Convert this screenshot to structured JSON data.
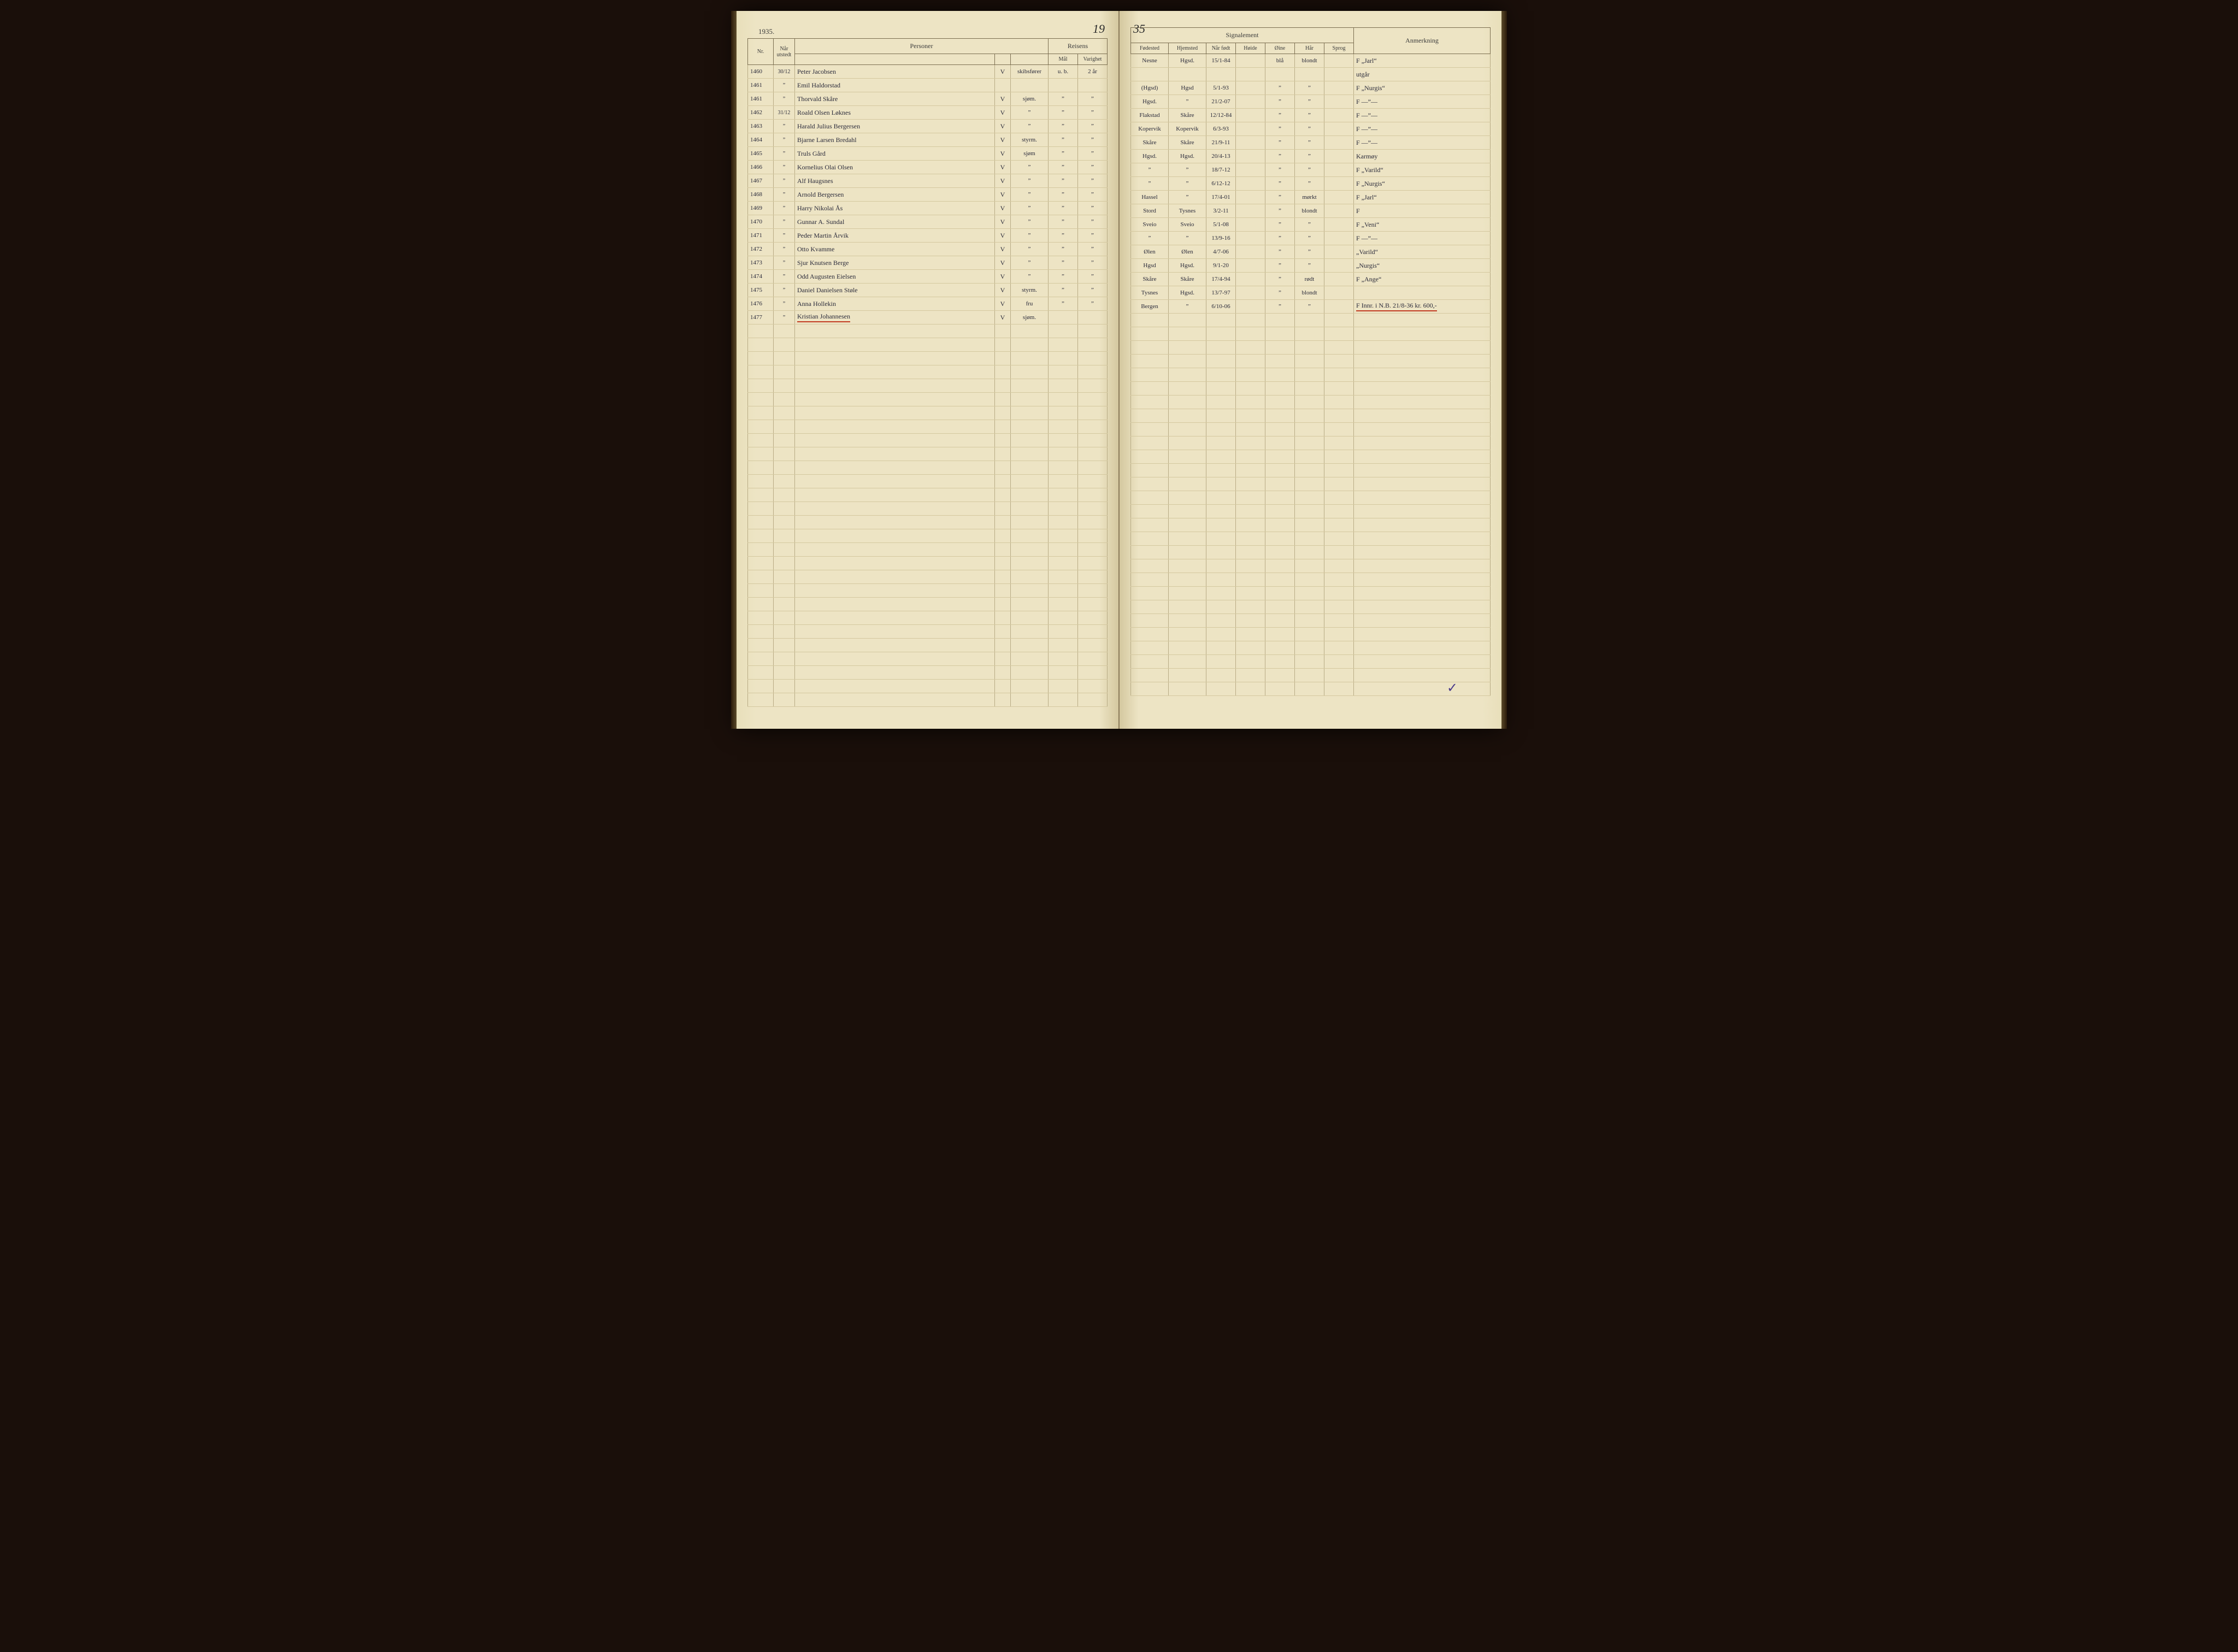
{
  "year_left": "1935.",
  "page_num_left": "19",
  "page_num_right": "35",
  "headers_left": {
    "nr": "Nr.",
    "naar": "Når utstedt",
    "personer": "Personer",
    "reisens": "Reisens",
    "maal": "Mål",
    "varighet": "Varighet"
  },
  "headers_right": {
    "signalement": "Signalement",
    "fodested": "Fødested",
    "hjemsted": "Hjemsted",
    "naar_fodt": "Når født",
    "hoide": "Høide",
    "oine": "Øine",
    "haar": "Hår",
    "sprog": "Sprog",
    "anmerkning": "Anmerkning"
  },
  "rows": [
    {
      "nr": "1460",
      "date": "30/12",
      "name": "Peter Jacobsen",
      "v": "V",
      "stilling": "skibsfører",
      "maal": "u. b.",
      "varig": "2 år",
      "fode": "Nesne",
      "hjem": "Hgsd.",
      "fodt": "15/1-84",
      "hoide": "",
      "oine": "blå",
      "haar": "blondt",
      "sprog": "",
      "anm": "F  „Jarl“"
    },
    {
      "nr": "1461",
      "date": "”",
      "name": "Emil Haldorstad",
      "v": "",
      "stilling": "",
      "maal": "",
      "varig": "",
      "fode": "",
      "hjem": "",
      "fodt": "",
      "hoide": "",
      "oine": "",
      "haar": "",
      "sprog": "",
      "anm": "utgår"
    },
    {
      "nr": "1461",
      "date": "”",
      "name": "Thorvald Skåre",
      "v": "V",
      "stilling": "sjøm.",
      "maal": "”",
      "varig": "”",
      "fode": "(Hgsd)",
      "hjem": "Hgsd",
      "fodt": "5/1-93",
      "hoide": "",
      "oine": "”",
      "haar": "”",
      "sprog": "",
      "anm": "F  „Nurgis“"
    },
    {
      "nr": "1462",
      "date": "31/12",
      "name": "Roald Olsen Løknes",
      "v": "V",
      "stilling": "”",
      "maal": "”",
      "varig": "”",
      "fode": "Hgsd.",
      "hjem": "”",
      "fodt": "21/2-07",
      "hoide": "",
      "oine": "”",
      "haar": "”",
      "sprog": "",
      "anm": "F  —”—"
    },
    {
      "nr": "1463",
      "date": "”",
      "name": "Harald Julius Bergersen",
      "v": "V",
      "stilling": "”",
      "maal": "”",
      "varig": "”",
      "fode": "Flakstad",
      "hjem": "Skåre",
      "fodt": "12/12-84",
      "hoide": "",
      "oine": "”",
      "haar": "”",
      "sprog": "",
      "anm": "F  —”—"
    },
    {
      "nr": "1464",
      "date": "”",
      "name": "Bjarne Larsen Bredahl",
      "v": "V",
      "stilling": "styrm.",
      "maal": "”",
      "varig": "”",
      "fode": "Kopervik",
      "hjem": "Kopervik",
      "fodt": "6/3-93",
      "hoide": "",
      "oine": "”",
      "haar": "”",
      "sprog": "",
      "anm": "F  —”—"
    },
    {
      "nr": "1465",
      "date": "”",
      "name": "Truls Gård",
      "v": "V",
      "stilling": "sjøm",
      "maal": "”",
      "varig": "”",
      "fode": "Skåre",
      "hjem": "Skåre",
      "fodt": "21/9-11",
      "hoide": "",
      "oine": "”",
      "haar": "”",
      "sprog": "",
      "anm": "F  —”—"
    },
    {
      "nr": "1466",
      "date": "”",
      "name": "Kornelius Olai Olsen",
      "v": "V",
      "stilling": "”",
      "maal": "”",
      "varig": "”",
      "fode": "Hgsd.",
      "hjem": "Hgsd.",
      "fodt": "20/4-13",
      "hoide": "",
      "oine": "”",
      "haar": "”",
      "sprog": "",
      "anm": "Karmøy"
    },
    {
      "nr": "1467",
      "date": "”",
      "name": "Alf Haugsnes",
      "v": "V",
      "stilling": "”",
      "maal": "”",
      "varig": "”",
      "fode": "”",
      "hjem": "”",
      "fodt": "18/7-12",
      "hoide": "",
      "oine": "”",
      "haar": "”",
      "sprog": "",
      "anm": "F  „Varild“"
    },
    {
      "nr": "1468",
      "date": "”",
      "name": "Arnold Bergersen",
      "v": "V",
      "stilling": "”",
      "maal": "”",
      "varig": "”",
      "fode": "”",
      "hjem": "”",
      "fodt": "6/12-12",
      "hoide": "",
      "oine": "”",
      "haar": "”",
      "sprog": "",
      "anm": "F  „Nurgis“"
    },
    {
      "nr": "1469",
      "date": "”",
      "name": "Harry Nikolai Ås",
      "v": "V",
      "stilling": "”",
      "maal": "”",
      "varig": "”",
      "fode": "Hassel",
      "hjem": "”",
      "fodt": "17/4-01",
      "hoide": "",
      "oine": "”",
      "haar": "mørkt",
      "sprog": "",
      "anm": "F  „Jarl“"
    },
    {
      "nr": "1470",
      "date": "”",
      "name": "Gunnar A. Sundal",
      "v": "V",
      "stilling": "”",
      "maal": "”",
      "varig": "”",
      "fode": "Stord",
      "hjem": "Tysnes",
      "fodt": "3/2-11",
      "hoide": "",
      "oine": "”",
      "haar": "blondt",
      "sprog": "",
      "anm": "F"
    },
    {
      "nr": "1471",
      "date": "”",
      "name": "Peder Martin Årvik",
      "v": "V",
      "stilling": "”",
      "maal": "”",
      "varig": "”",
      "fode": "Sveio",
      "hjem": "Sveio",
      "fodt": "5/1-08",
      "hoide": "",
      "oine": "”",
      "haar": "”",
      "sprog": "",
      "anm": "F  „Veni“"
    },
    {
      "nr": "1472",
      "date": "”",
      "name": "Otto Kvamme",
      "v": "V",
      "stilling": "”",
      "maal": "”",
      "varig": "”",
      "fode": "”",
      "hjem": "”",
      "fodt": "13/9-16",
      "hoide": "",
      "oine": "”",
      "haar": "”",
      "sprog": "",
      "anm": "F  —”—"
    },
    {
      "nr": "1473",
      "date": "”",
      "name": "Sjur Knutsen Berge",
      "v": "V",
      "stilling": "”",
      "maal": "”",
      "varig": "”",
      "fode": "Ølen",
      "hjem": "Ølen",
      "fodt": "4/7-06",
      "hoide": "",
      "oine": "”",
      "haar": "”",
      "sprog": "",
      "anm": "„Varild“"
    },
    {
      "nr": "1474",
      "date": "”",
      "name": "Odd Augusten Eielsen",
      "v": "V",
      "stilling": "”",
      "maal": "”",
      "varig": "”",
      "fode": "Hgsd",
      "hjem": "Hgsd.",
      "fodt": "9/1-20",
      "hoide": "",
      "oine": "”",
      "haar": "”",
      "sprog": "",
      "anm": "„Nurgis“"
    },
    {
      "nr": "1475",
      "date": "”",
      "name": "Daniel Danielsen Støle",
      "v": "V",
      "stilling": "styrm.",
      "maal": "”",
      "varig": "”",
      "fode": "Skåre",
      "hjem": "Skåre",
      "fodt": "17/4-94",
      "hoide": "",
      "oine": "”",
      "haar": "rødt",
      "sprog": "",
      "anm": "F  „Ange“"
    },
    {
      "nr": "1476",
      "date": "”",
      "name": "Anna Hollekin",
      "v": "V",
      "stilling": "fru",
      "maal": "”",
      "varig": "”",
      "fode": "Tysnes",
      "hjem": "Hgsd.",
      "fodt": "13/7-97",
      "hoide": "",
      "oine": "”",
      "haar": "blondt",
      "sprog": "",
      "anm": ""
    },
    {
      "nr": "1477",
      "date": "”",
      "name": "Kristian Johannesen",
      "v": "V",
      "stilling": "sjøm.",
      "maal": "",
      "varig": "",
      "fode": "Bergen",
      "hjem": "”",
      "fodt": "6/10-06",
      "hoide": "",
      "oine": "”",
      "haar": "”",
      "sprog": "",
      "anm": "F Innr. i N.B. 21/8-36  kr. 600,-",
      "underline": true
    }
  ],
  "empty_row_count": 28,
  "checkmark": "✓",
  "colors": {
    "paper": "#ede4c4",
    "line": "#b8ab85",
    "header_border": "#7a6d4f",
    "ink": "#2a2a3a",
    "red": "#c23b22",
    "purple": "#4a3a8a"
  }
}
